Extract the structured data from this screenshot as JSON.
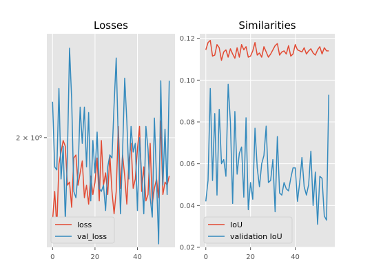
{
  "colors": {
    "background": "#E5E5E5",
    "grid": "#FFFFFF",
    "series_red": "#E24A33",
    "series_blue": "#348ABD",
    "tick": "#555555"
  },
  "chart_data": [
    {
      "type": "line",
      "title": "Losses",
      "xlabel": "",
      "ylabel": "",
      "yscale": "log",
      "grid": true,
      "legend_position": "lower-left",
      "xlim": [
        -2.7,
        57.7
      ],
      "ylim": [
        1.65,
        2.4
      ],
      "x_ticks": [
        0,
        20,
        40
      ],
      "x_tick_labels": [
        "0",
        "20",
        "40"
      ],
      "y_ticks": [
        2.0
      ],
      "y_tick_labels": [
        "2 × 10⁰"
      ],
      "x": [
        0,
        1,
        2,
        3,
        4,
        5,
        6,
        7,
        8,
        9,
        10,
        11,
        12,
        13,
        14,
        15,
        16,
        17,
        18,
        19,
        20,
        21,
        22,
        23,
        24,
        25,
        26,
        27,
        28,
        29,
        30,
        31,
        32,
        33,
        34,
        35,
        36,
        37,
        38,
        39,
        40,
        41,
        42,
        43,
        44,
        45,
        46,
        47,
        48,
        49,
        50,
        51,
        52,
        53,
        54,
        55
      ],
      "series": [
        {
          "name": "loss",
          "color": "#E24A33",
          "values": [
            1.73,
            1.82,
            1.71,
            1.91,
            1.95,
            1.99,
            1.97,
            1.84,
            1.85,
            1.77,
            1.93,
            1.94,
            1.84,
            1.88,
            1.92,
            1.8,
            1.84,
            1.78,
            1.87,
            1.81,
            1.85,
            1.93,
            1.79,
            1.99,
            1.84,
            1.88,
            1.81,
            1.94,
            1.82,
            1.75,
            1.82,
            2.04,
            1.83,
            1.94,
            1.87,
            1.78,
            1.92,
            1.98,
            1.83,
            1.86,
            1.96,
            2.04,
            1.82,
            1.9,
            1.79,
            1.81,
            1.98,
            1.78,
            1.83,
            1.86,
            1.8,
            2.06,
            1.81,
            1.85,
            1.84,
            1.87
          ]
        },
        {
          "name": "val_loss",
          "color": "#348ABD",
          "values": [
            2.13,
            1.9,
            1.89,
            2.18,
            1.86,
            1.97,
            1.73,
            1.94,
            2.34,
            2.14,
            1.82,
            1.8,
            1.88,
            2.11,
            1.98,
            2.11,
            1.9,
            2.09,
            1.79,
            1.99,
            1.88,
            2.02,
            1.83,
            1.82,
            1.84,
            1.76,
            1.9,
            1.94,
            1.93,
            2.12,
            2.3,
            1.98,
            1.75,
            1.95,
            2.22,
            2.06,
            1.86,
            2.04,
            1.95,
            1.98,
            1.76,
            2.0,
            1.87,
            1.75,
            2.04,
            1.96,
            1.8,
            1.74,
            2.07,
            1.86,
            1.66,
            2.21,
            1.84,
            2.03,
            1.81,
            2.21
          ]
        }
      ]
    },
    {
      "type": "line",
      "title": "Similarities",
      "xlabel": "",
      "ylabel": "",
      "grid": true,
      "legend_position": "lower-left",
      "xlim": [
        -2.7,
        57.7
      ],
      "ylim": [
        0.02,
        0.1222
      ],
      "x_ticks": [
        0,
        20,
        40
      ],
      "x_tick_labels": [
        "0",
        "20",
        "40"
      ],
      "y_ticks": [
        0.02,
        0.04,
        0.06,
        0.08,
        0.1,
        0.12
      ],
      "y_tick_labels": [
        "0.02",
        "0.04",
        "0.06",
        "0.08",
        "0.10",
        "0.12"
      ],
      "x": [
        0,
        1,
        2,
        3,
        4,
        5,
        6,
        7,
        8,
        9,
        10,
        11,
        12,
        13,
        14,
        15,
        16,
        17,
        18,
        19,
        20,
        21,
        22,
        23,
        24,
        25,
        26,
        27,
        28,
        29,
        30,
        31,
        32,
        33,
        34,
        35,
        36,
        37,
        38,
        39,
        40,
        41,
        42,
        43,
        44,
        45,
        46,
        47,
        48,
        49,
        50,
        51,
        52,
        53,
        54,
        55
      ],
      "series": [
        {
          "name": "IoU",
          "color": "#E24A33",
          "values": [
            0.1145,
            0.118,
            0.119,
            0.1115,
            0.112,
            0.117,
            0.1155,
            0.1095,
            0.1135,
            0.1145,
            0.111,
            0.115,
            0.1125,
            0.1105,
            0.1155,
            0.111,
            0.117,
            0.1145,
            0.116,
            0.111,
            0.1115,
            0.114,
            0.118,
            0.112,
            0.113,
            0.111,
            0.116,
            0.1135,
            0.111,
            0.1125,
            0.1145,
            0.1165,
            0.1175,
            0.112,
            0.1135,
            0.114,
            0.1125,
            0.1165,
            0.1115,
            0.1125,
            0.117,
            0.1145,
            0.114,
            0.1135,
            0.1155,
            0.1125,
            0.114,
            0.115,
            0.113,
            0.112,
            0.1145,
            0.116,
            0.1125,
            0.1155,
            0.114,
            0.114
          ]
        },
        {
          "name": "validation IoU",
          "color": "#348ABD",
          "values": [
            0.042,
            0.052,
            0.096,
            0.052,
            0.084,
            0.045,
            0.086,
            0.06,
            0.062,
            0.054,
            0.098,
            0.08,
            0.041,
            0.085,
            0.055,
            0.065,
            0.068,
            0.044,
            0.082,
            0.038,
            0.051,
            0.043,
            0.077,
            0.058,
            0.049,
            0.06,
            0.064,
            0.078,
            0.051,
            0.052,
            0.062,
            0.037,
            0.073,
            0.046,
            0.045,
            0.051,
            0.048,
            0.047,
            0.053,
            0.058,
            0.058,
            0.042,
            0.051,
            0.063,
            0.049,
            0.045,
            0.05,
            0.066,
            0.04,
            0.056,
            0.031,
            0.054,
            0.053,
            0.035,
            0.033,
            0.093
          ]
        }
      ]
    }
  ]
}
